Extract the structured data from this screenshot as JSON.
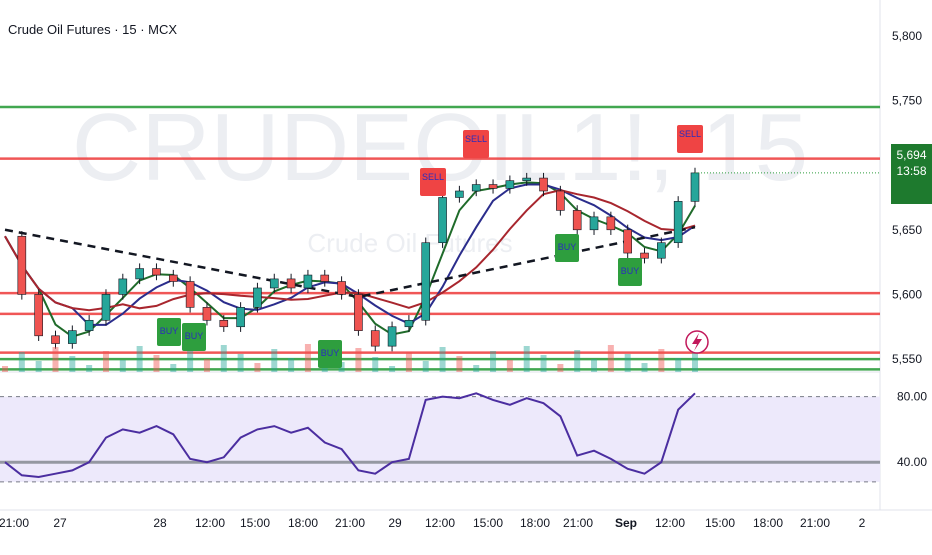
{
  "title": "Crude Oil Futures · 15 · MCX",
  "watermark": "CRUDEOIL1!, 15",
  "watermark_sub": "Crude Oil Futures",
  "price_axis": {
    "ticks": [
      "5,800",
      "5,750",
      "5,700",
      "5,650",
      "5,600",
      "5,550"
    ],
    "last_price": "5,694",
    "countdown": "13:58"
  },
  "rsi_axis": {
    "ticks": [
      "80.00",
      "40.00"
    ]
  },
  "time_axis": {
    "ticks": [
      "21:00",
      "27",
      "28",
      "12:00",
      "15:00",
      "18:00",
      "21:00",
      "29",
      "12:00",
      "15:00",
      "18:00",
      "21:00",
      "Sep",
      "12:00",
      "15:00",
      "18:00",
      "21:00",
      "2"
    ]
  },
  "signal_labels": {
    "sell": "SELL",
    "buy": "BUY"
  },
  "colors": {
    "green_line": "#2e9e3e",
    "red_line": "#ef4444",
    "ema_fast": "#1f6b2a",
    "ema_mid": "#2b2d8c",
    "ema_slow": "#a8262e",
    "rsi": "#4b2ea0",
    "rsi_band": "#ede9fb",
    "up_candle": "#26a69a",
    "down_candle": "#ef5350",
    "last_tag": "#1e7a2e"
  },
  "chart_data": {
    "type": "line",
    "series": [
      {
        "values": [
          5645,
          5600,
          5568,
          5562,
          5572,
          5580,
          5600,
          5612,
          5620,
          5615,
          5610,
          5590,
          5580,
          5575,
          5590,
          5605,
          5612,
          5605,
          5615,
          5610,
          5600,
          5572,
          5560,
          5575,
          5580,
          5640,
          5675,
          5680,
          5685,
          5682,
          5688,
          5690,
          5680,
          5665,
          5650,
          5660,
          5650,
          5632,
          5628,
          5640,
          5672,
          5694
        ]
      }
    ],
    "horizontal_levels": [
      {
        "value": 5745,
        "color": "green"
      },
      {
        "value": 5705,
        "color": "red"
      },
      {
        "value": 5601,
        "color": "red"
      },
      {
        "value": 5585,
        "color": "red"
      },
      {
        "value": 5555,
        "color": "red"
      },
      {
        "value": 5550,
        "color": "green"
      },
      {
        "value": 5542,
        "color": "green"
      }
    ],
    "ylim": [
      5540,
      5820
    ],
    "rsi": {
      "values": [
        40,
        32,
        31,
        33,
        35,
        40,
        55,
        60,
        58,
        62,
        57,
        42,
        40,
        43,
        55,
        60,
        62,
        58,
        61,
        52,
        48,
        35,
        33,
        40,
        42,
        78,
        80,
        79,
        82,
        78,
        75,
        79,
        76,
        68,
        44,
        47,
        42,
        36,
        33,
        40,
        72,
        82
      ],
      "ylim": [
        20,
        95
      ]
    }
  }
}
